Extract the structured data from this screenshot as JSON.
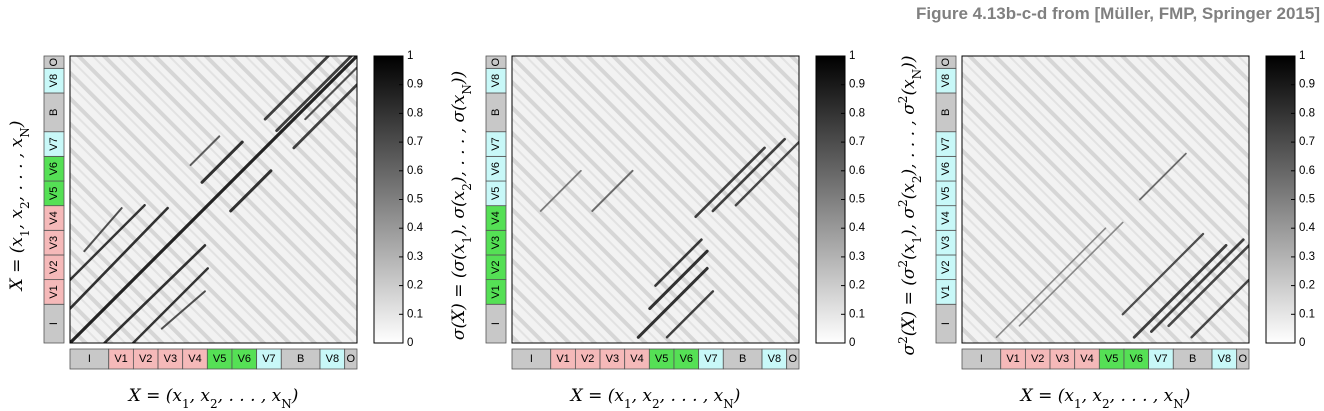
{
  "caption": "Figure 4.13b-c-d from [Müller, FMP, Springer 2015]",
  "colors": {
    "I": "#c8c8c8",
    "V": "#f5b9b9",
    "VG": "#55e055",
    "VC": "#c8f8f8",
    "B": "#c8c8c8",
    "O": "#c8c8c8"
  },
  "chart_data": [
    {
      "type": "heatmap",
      "xlabel": "X = (x1, x2, ..., xN)",
      "ylabel": "X = (x1, x2, ..., xN)",
      "colorbar": {
        "ticks": [
          "0",
          "0.1",
          "0.2",
          "0.3",
          "0.4",
          "0.5",
          "0.6",
          "0.7",
          "0.8",
          "0.9",
          "1"
        ],
        "range": [
          0,
          1
        ]
      },
      "x_segments": [
        {
          "label": "I",
          "color": "I",
          "w": 1.1
        },
        {
          "label": "V1",
          "color": "V",
          "w": 0.7
        },
        {
          "label": "V2",
          "color": "V",
          "w": 0.7
        },
        {
          "label": "V3",
          "color": "V",
          "w": 0.7
        },
        {
          "label": "V4",
          "color": "V",
          "w": 0.7
        },
        {
          "label": "V5",
          "color": "VG",
          "w": 0.7
        },
        {
          "label": "V6",
          "color": "VG",
          "w": 0.7
        },
        {
          "label": "V7",
          "color": "VC",
          "w": 0.7
        },
        {
          "label": "B",
          "color": "B",
          "w": 1.1
        },
        {
          "label": "V8",
          "color": "VC",
          "w": 0.7
        },
        {
          "label": "O",
          "color": "O",
          "w": 0.35
        }
      ],
      "y_segments": [
        {
          "label": "I",
          "color": "I",
          "w": 1.1
        },
        {
          "label": "V1",
          "color": "V",
          "w": 0.7
        },
        {
          "label": "V2",
          "color": "V",
          "w": 0.7
        },
        {
          "label": "V3",
          "color": "V",
          "w": 0.7
        },
        {
          "label": "V4",
          "color": "V",
          "w": 0.7
        },
        {
          "label": "V5",
          "color": "VG",
          "w": 0.7
        },
        {
          "label": "V6",
          "color": "VG",
          "w": 0.7
        },
        {
          "label": "V7",
          "color": "VC",
          "w": 0.7
        },
        {
          "label": "B",
          "color": "B",
          "w": 1.1
        },
        {
          "label": "V8",
          "color": "VC",
          "w": 0.7
        },
        {
          "label": "O",
          "color": "O",
          "w": 0.35
        }
      ]
    },
    {
      "type": "heatmap",
      "xlabel": "X = (x1, x2, ..., xN)",
      "ylabel": "σ(X) = (σ(x1), σ(x2), ..., σ(xN))",
      "colorbar": {
        "ticks": [
          "0",
          "0.1",
          "0.2",
          "0.3",
          "0.4",
          "0.5",
          "0.6",
          "0.7",
          "0.8",
          "0.9",
          "1"
        ],
        "range": [
          0,
          1
        ]
      },
      "x_segments": [
        {
          "label": "I",
          "color": "I",
          "w": 1.1
        },
        {
          "label": "V1",
          "color": "V",
          "w": 0.7
        },
        {
          "label": "V2",
          "color": "V",
          "w": 0.7
        },
        {
          "label": "V3",
          "color": "V",
          "w": 0.7
        },
        {
          "label": "V4",
          "color": "V",
          "w": 0.7
        },
        {
          "label": "V5",
          "color": "VG",
          "w": 0.7
        },
        {
          "label": "V6",
          "color": "VG",
          "w": 0.7
        },
        {
          "label": "V7",
          "color": "VC",
          "w": 0.7
        },
        {
          "label": "B",
          "color": "B",
          "w": 1.1
        },
        {
          "label": "V8",
          "color": "VC",
          "w": 0.7
        },
        {
          "label": "O",
          "color": "O",
          "w": 0.35
        }
      ],
      "y_segments": [
        {
          "label": "I",
          "color": "I",
          "w": 1.1
        },
        {
          "label": "V1",
          "color": "VG",
          "w": 0.7
        },
        {
          "label": "V2",
          "color": "VG",
          "w": 0.7
        },
        {
          "label": "V3",
          "color": "VG",
          "w": 0.7
        },
        {
          "label": "V4",
          "color": "VG",
          "w": 0.7
        },
        {
          "label": "V5",
          "color": "VC",
          "w": 0.7
        },
        {
          "label": "V6",
          "color": "VC",
          "w": 0.7
        },
        {
          "label": "V7",
          "color": "VC",
          "w": 0.7
        },
        {
          "label": "B",
          "color": "B",
          "w": 1.1
        },
        {
          "label": "V8",
          "color": "VC",
          "w": 0.7
        },
        {
          "label": "O",
          "color": "O",
          "w": 0.35
        }
      ]
    },
    {
      "type": "heatmap",
      "xlabel": "X = (x1, x2, ..., xN)",
      "ylabel": "σ²(X) = (σ²(x1), σ²(x2), ..., σ²(xN))",
      "colorbar": {
        "ticks": [
          "0",
          "0.1",
          "0.2",
          "0.3",
          "0.4",
          "0.5",
          "0.6",
          "0.7",
          "0.8",
          "0.9",
          "1"
        ],
        "range": [
          0,
          1
        ]
      },
      "x_segments": [
        {
          "label": "I",
          "color": "I",
          "w": 1.1
        },
        {
          "label": "V1",
          "color": "V",
          "w": 0.7
        },
        {
          "label": "V2",
          "color": "V",
          "w": 0.7
        },
        {
          "label": "V3",
          "color": "V",
          "w": 0.7
        },
        {
          "label": "V4",
          "color": "V",
          "w": 0.7
        },
        {
          "label": "V5",
          "color": "VG",
          "w": 0.7
        },
        {
          "label": "V6",
          "color": "VG",
          "w": 0.7
        },
        {
          "label": "V7",
          "color": "VC",
          "w": 0.7
        },
        {
          "label": "B",
          "color": "B",
          "w": 1.1
        },
        {
          "label": "V8",
          "color": "VC",
          "w": 0.7
        },
        {
          "label": "O",
          "color": "O",
          "w": 0.35
        }
      ],
      "y_segments": [
        {
          "label": "I",
          "color": "I",
          "w": 1.1
        },
        {
          "label": "V1",
          "color": "VC",
          "w": 0.7
        },
        {
          "label": "V2",
          "color": "VC",
          "w": 0.7
        },
        {
          "label": "V3",
          "color": "VC",
          "w": 0.7
        },
        {
          "label": "V4",
          "color": "VC",
          "w": 0.7
        },
        {
          "label": "V5",
          "color": "VC",
          "w": 0.7
        },
        {
          "label": "V6",
          "color": "VC",
          "w": 0.7
        },
        {
          "label": "V7",
          "color": "VC",
          "w": 0.7
        },
        {
          "label": "B",
          "color": "B",
          "w": 1.1
        },
        {
          "label": "V8",
          "color": "VC",
          "w": 0.7
        },
        {
          "label": "O",
          "color": "O",
          "w": 0.35
        }
      ]
    }
  ]
}
